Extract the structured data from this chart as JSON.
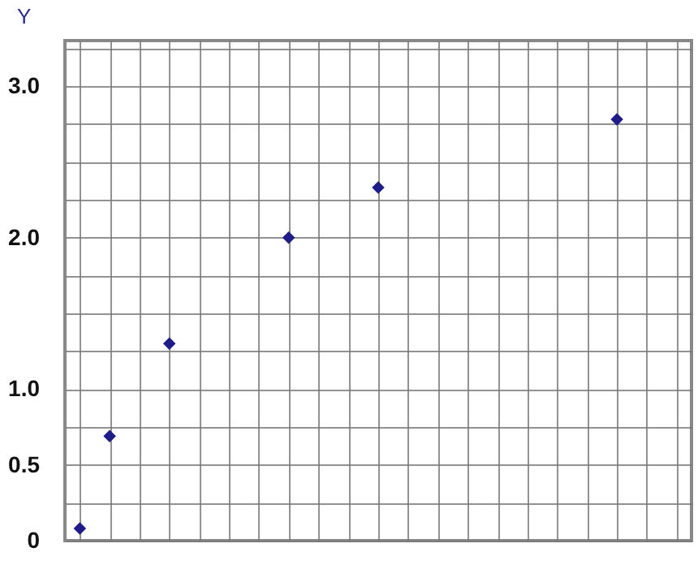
{
  "chart_data": {
    "type": "scatter",
    "ylabel": "Y",
    "categories": [
      null,
      null,
      null,
      null,
      null,
      null,
      null,
      null,
      null,
      null,
      null,
      null,
      null,
      null,
      null,
      null,
      null,
      null,
      null,
      null,
      null
    ],
    "series": [
      {
        "color": "#1c1c8a",
        "values": [
          0.08,
          0.69,
          null,
          1.3,
          null,
          null,
          null,
          2.0,
          null,
          null,
          2.33,
          null,
          null,
          null,
          null,
          null,
          null,
          null,
          2.78,
          null,
          null
        ]
      }
    ],
    "marker": "diamond",
    "grid": true,
    "legend": false,
    "tick_labels": "y",
    "ylim": [
      0,
      3.3
    ],
    "yticks": [
      0,
      {
        "value": 0.25,
        "label": null
      },
      0.5,
      {
        "value": 0.75,
        "label": null
      },
      {
        "value": 1,
        "label": "1.0"
      },
      {
        "value": 1.25,
        "label": null
      },
      {
        "value": 1.5,
        "label": null
      },
      {
        "value": 1.75,
        "label": null
      },
      {
        "value": 2,
        "label": "2.0"
      },
      {
        "value": 2.25,
        "label": null
      },
      {
        "value": 2.5,
        "label": null
      },
      {
        "value": 2.75,
        "label": null
      },
      {
        "value": 3,
        "label": "3.0"
      },
      {
        "value": 3.25,
        "label": null
      }
    ]
  }
}
